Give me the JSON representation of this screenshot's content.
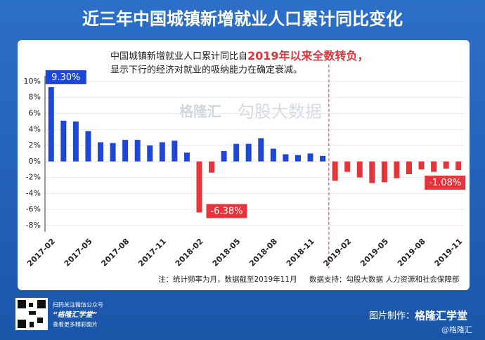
{
  "chart_data": {
    "type": "bar",
    "title": "近三年中国城镇新增就业人口累计同比变化",
    "annotation": {
      "line1_a": "中国城镇新增就业人口累计同比自",
      "line1_b": "2019年以来全数转负，",
      "line2": "显示下行的经济对就业的吸纳能力在确定衰减。"
    },
    "categories": [
      "2017-02",
      null,
      null,
      "2017-05",
      null,
      null,
      "2017-08",
      null,
      null,
      "2017-11",
      null,
      null,
      "2018-02",
      null,
      null,
      "2018-05",
      null,
      null,
      "2018-08",
      null,
      null,
      "2018-11",
      null,
      null,
      "2019-02",
      null,
      null,
      "2019-05",
      null,
      null,
      "2019-08",
      null,
      null,
      "2019-11"
    ],
    "values": [
      9.3,
      5.1,
      5.0,
      3.8,
      2.4,
      2.3,
      2.7,
      2.7,
      2.0,
      2.4,
      2.6,
      1.1,
      -6.38,
      -1.4,
      1.3,
      2.2,
      2.2,
      2.9,
      1.6,
      0.9,
      0.8,
      1.0,
      0.7,
      -2.4,
      -1.3,
      -2.0,
      -2.7,
      -2.6,
      -2.1,
      -1.6,
      -1.0,
      -1.3,
      -0.9,
      -1.08
    ],
    "value_labels": [
      "9.30%",
      null,
      null,
      null,
      null,
      null,
      null,
      null,
      null,
      null,
      null,
      null,
      "-6.38%",
      null,
      null,
      null,
      null,
      null,
      null,
      null,
      null,
      null,
      null,
      null,
      null,
      null,
      null,
      null,
      null,
      null,
      null,
      null,
      null,
      "-1.08%"
    ],
    "color": "#1f47d6",
    "negative_color": "#e5343c",
    "ylim": [
      -8.8,
      10.7
    ],
    "yticks": [
      {
        "value": -8,
        "label": "-8%"
      },
      {
        "value": -6,
        "label": "-6%"
      },
      {
        "value": -4,
        "label": "-4%"
      },
      {
        "value": -2,
        "label": "-2%"
      },
      {
        "value": 0,
        "label": "0%"
      },
      {
        "value": 2,
        "label": "2%"
      },
      {
        "value": 4,
        "label": "4%"
      },
      {
        "value": 6,
        "label": "6%"
      },
      {
        "value": 8,
        "label": "8%"
      },
      {
        "value": 10,
        "label": "10%"
      }
    ],
    "grid": true,
    "watermarks": [
      "格隆汇",
      "勾股大数据"
    ],
    "footnote_left": "注：统计频率为月，数据截至2019年11月",
    "footnote_right": "数据支持：勾股大数据  人力资源和社会保障部"
  },
  "footer": {
    "qr_line1": "扫码关注微信公众号",
    "qr_line2": "“格隆汇学堂”",
    "qr_line3": "查看更多精彩图片",
    "credit_label": "图片制作：",
    "credit_name": "格隆汇学堂",
    "weibo": "@格隆汇"
  }
}
